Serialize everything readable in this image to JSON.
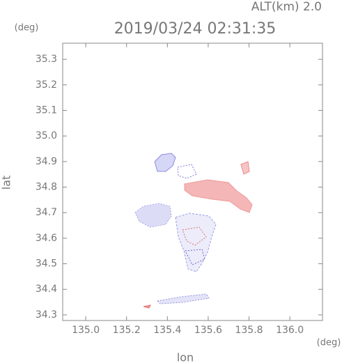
{
  "chart_data": {
    "type": "map-scan",
    "annotation": "ALT(km) 2.0",
    "title": "2019/03/24 02:31:35",
    "y_unit": "(deg)",
    "x_unit": "(deg)",
    "ylabel": "lat",
    "xlabel": "lon",
    "xlim": [
      134.887,
      136.16
    ],
    "ylim": [
      34.278,
      35.363
    ],
    "xticks": [
      {
        "value": 135,
        "label": "135.0"
      },
      135.2,
      135.4,
      135.6,
      135.8,
      {
        "value": 136,
        "label": "136.0"
      }
    ],
    "yticks": [
      34.3,
      34.4,
      34.5,
      34.6,
      34.7,
      34.8,
      34.9,
      {
        "value": 35,
        "label": "35.0"
      },
      35.1,
      35.2,
      35.3
    ]
  }
}
